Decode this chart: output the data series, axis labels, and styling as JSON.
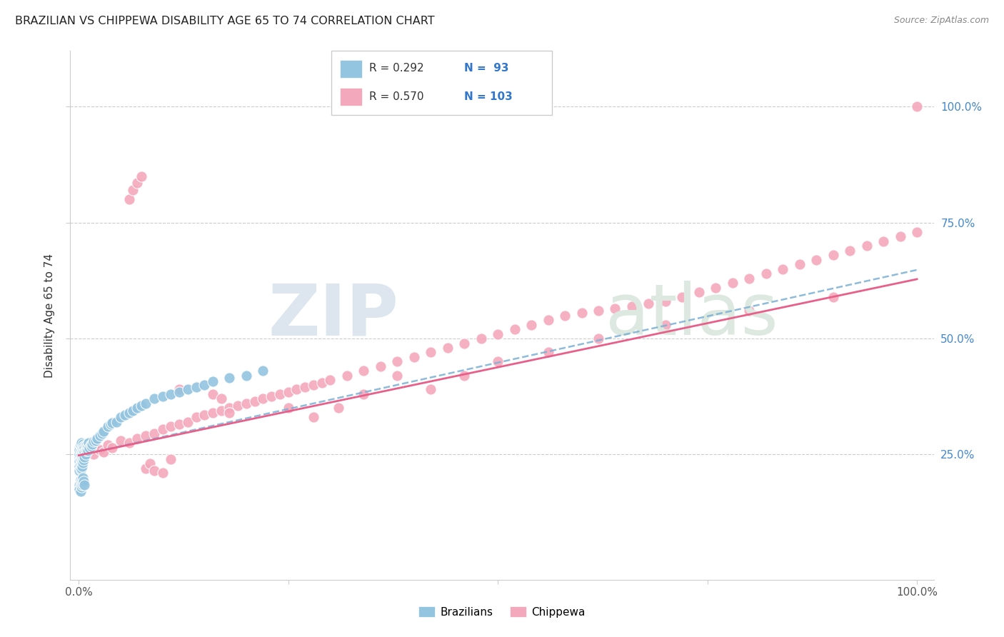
{
  "title": "BRAZILIAN VS CHIPPEWA DISABILITY AGE 65 TO 74 CORRELATION CHART",
  "source": "Source: ZipAtlas.com",
  "ylabel": "Disability Age 65 to 74",
  "ytick_vals": [
    0.25,
    0.5,
    0.75,
    1.0
  ],
  "legend_label1": "Brazilians",
  "legend_label2": "Chippewa",
  "R1": 0.292,
  "N1": 93,
  "R2": 0.57,
  "N2": 103,
  "color_blue": "#93c4e0",
  "color_pink": "#f4a8bc",
  "color_blue_dark": "#5b9ec9",
  "color_pink_dark": "#e8608a",
  "color_blue_line": "#7ab0d4",
  "color_pink_line": "#e8608a",
  "background_color": "#ffffff",
  "brazil_x": [
    0.001,
    0.001,
    0.001,
    0.001,
    0.001,
    0.001,
    0.001,
    0.001,
    0.002,
    0.002,
    0.002,
    0.002,
    0.002,
    0.002,
    0.002,
    0.003,
    0.003,
    0.003,
    0.003,
    0.003,
    0.003,
    0.004,
    0.004,
    0.004,
    0.004,
    0.004,
    0.005,
    0.005,
    0.005,
    0.005,
    0.005,
    0.006,
    0.006,
    0.006,
    0.006,
    0.007,
    0.007,
    0.007,
    0.008,
    0.008,
    0.008,
    0.009,
    0.009,
    0.01,
    0.01,
    0.011,
    0.011,
    0.012,
    0.013,
    0.014,
    0.015,
    0.016,
    0.018,
    0.02,
    0.022,
    0.025,
    0.028,
    0.03,
    0.035,
    0.038,
    0.04,
    0.045,
    0.05,
    0.055,
    0.06,
    0.065,
    0.07,
    0.075,
    0.08,
    0.09,
    0.1,
    0.11,
    0.12,
    0.13,
    0.14,
    0.15,
    0.16,
    0.18,
    0.2,
    0.22,
    0.001,
    0.001,
    0.002,
    0.002,
    0.002,
    0.003,
    0.003,
    0.004,
    0.004,
    0.005,
    0.005,
    0.006,
    0.007
  ],
  "brazil_y": [
    0.265,
    0.255,
    0.245,
    0.235,
    0.225,
    0.215,
    0.25,
    0.26,
    0.268,
    0.258,
    0.248,
    0.238,
    0.228,
    0.218,
    0.27,
    0.26,
    0.25,
    0.24,
    0.23,
    0.22,
    0.275,
    0.265,
    0.255,
    0.245,
    0.235,
    0.225,
    0.272,
    0.262,
    0.252,
    0.242,
    0.232,
    0.268,
    0.258,
    0.248,
    0.238,
    0.265,
    0.255,
    0.245,
    0.27,
    0.26,
    0.25,
    0.268,
    0.258,
    0.272,
    0.262,
    0.268,
    0.258,
    0.275,
    0.265,
    0.27,
    0.268,
    0.272,
    0.278,
    0.28,
    0.285,
    0.29,
    0.295,
    0.3,
    0.31,
    0.315,
    0.318,
    0.32,
    0.33,
    0.335,
    0.34,
    0.345,
    0.35,
    0.355,
    0.36,
    0.37,
    0.375,
    0.38,
    0.385,
    0.39,
    0.395,
    0.4,
    0.408,
    0.415,
    0.42,
    0.43,
    0.185,
    0.175,
    0.195,
    0.185,
    0.17,
    0.19,
    0.18,
    0.195,
    0.185,
    0.2,
    0.188,
    0.192,
    0.185
  ],
  "chippewa_x": [
    0.001,
    0.002,
    0.003,
    0.004,
    0.005,
    0.008,
    0.01,
    0.012,
    0.015,
    0.018,
    0.02,
    0.025,
    0.03,
    0.035,
    0.04,
    0.05,
    0.06,
    0.07,
    0.08,
    0.09,
    0.1,
    0.11,
    0.12,
    0.13,
    0.14,
    0.15,
    0.16,
    0.17,
    0.18,
    0.19,
    0.2,
    0.21,
    0.22,
    0.23,
    0.24,
    0.25,
    0.26,
    0.27,
    0.28,
    0.29,
    0.3,
    0.32,
    0.34,
    0.36,
    0.38,
    0.4,
    0.42,
    0.44,
    0.46,
    0.48,
    0.5,
    0.52,
    0.54,
    0.56,
    0.58,
    0.6,
    0.62,
    0.64,
    0.66,
    0.68,
    0.7,
    0.72,
    0.74,
    0.76,
    0.78,
    0.8,
    0.82,
    0.84,
    0.86,
    0.88,
    0.9,
    0.92,
    0.94,
    0.96,
    0.98,
    1.0,
    0.06,
    0.065,
    0.07,
    0.075,
    0.08,
    0.085,
    0.09,
    0.1,
    0.11,
    0.12,
    0.16,
    0.17,
    0.18,
    0.25,
    0.28,
    0.31,
    0.34,
    0.38,
    0.42,
    0.46,
    0.5,
    0.56,
    0.62,
    0.7,
    0.8,
    0.9,
    1.0
  ],
  "chippewa_y": [
    0.255,
    0.245,
    0.26,
    0.25,
    0.24,
    0.255,
    0.26,
    0.255,
    0.265,
    0.25,
    0.27,
    0.26,
    0.255,
    0.27,
    0.265,
    0.28,
    0.275,
    0.285,
    0.29,
    0.295,
    0.305,
    0.31,
    0.315,
    0.32,
    0.33,
    0.335,
    0.34,
    0.345,
    0.35,
    0.355,
    0.36,
    0.365,
    0.37,
    0.375,
    0.38,
    0.385,
    0.39,
    0.395,
    0.4,
    0.405,
    0.41,
    0.42,
    0.43,
    0.44,
    0.45,
    0.46,
    0.47,
    0.48,
    0.49,
    0.5,
    0.51,
    0.52,
    0.53,
    0.54,
    0.55,
    0.555,
    0.56,
    0.565,
    0.57,
    0.575,
    0.58,
    0.59,
    0.6,
    0.61,
    0.62,
    0.63,
    0.64,
    0.65,
    0.66,
    0.67,
    0.68,
    0.69,
    0.7,
    0.71,
    0.72,
    0.73,
    0.8,
    0.82,
    0.835,
    0.85,
    0.22,
    0.23,
    0.215,
    0.21,
    0.24,
    0.39,
    0.38,
    0.37,
    0.34,
    0.35,
    0.33,
    0.35,
    0.38,
    0.42,
    0.39,
    0.42,
    0.45,
    0.47,
    0.5,
    0.53,
    0.56,
    0.59,
    1.0
  ]
}
